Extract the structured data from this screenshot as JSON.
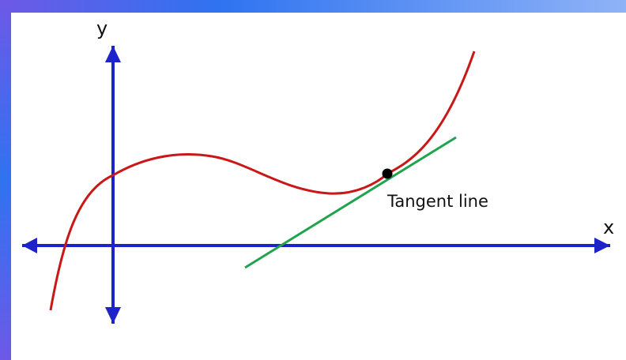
{
  "diagram": {
    "y_axis_label": "y",
    "x_axis_label": "x",
    "annotation": "Tangent line"
  },
  "colors": {
    "frame_gradient_top": "#2f73f0",
    "frame_gradient_mid": "#8fb3f7",
    "frame_gradient_left": "#6d59e6",
    "background": "#ffffff",
    "axes": "#1d22c9",
    "curve": "#c81818",
    "tangent": "#1fa34d",
    "point": "#000000",
    "text": "#111111"
  }
}
